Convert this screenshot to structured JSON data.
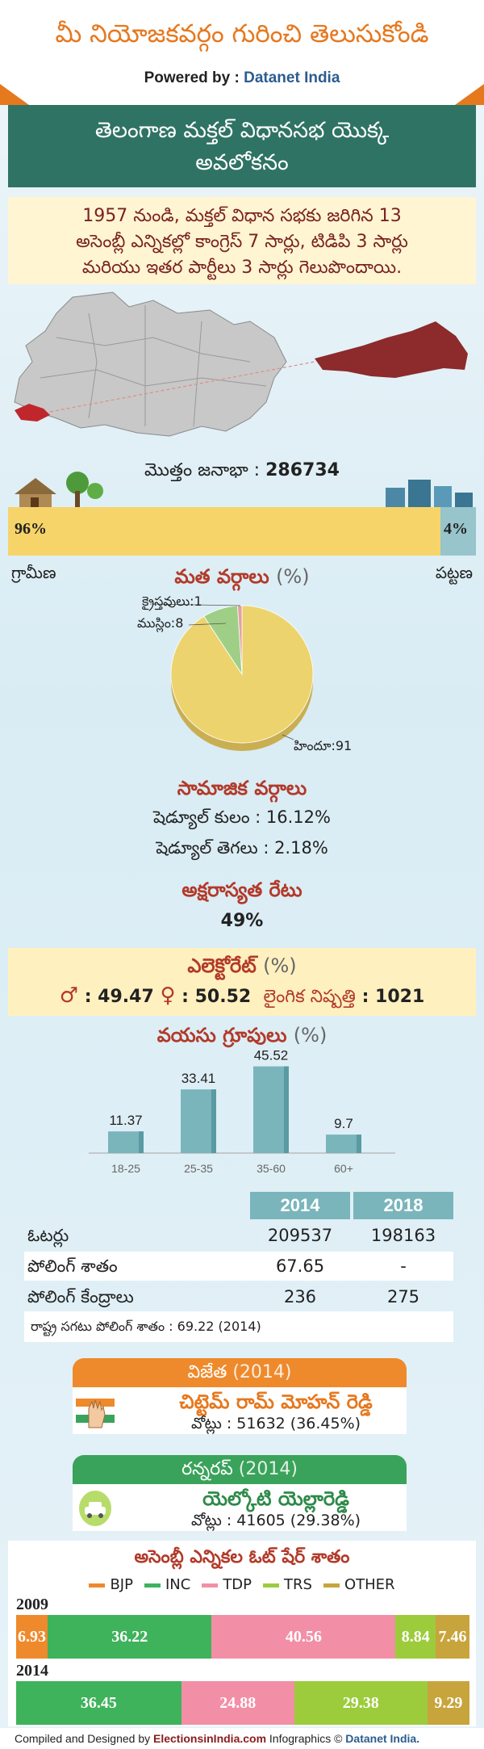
{
  "header": {
    "title": "మీ నియోజకవర్గం గురించి తెలుసుకోండి",
    "powered_by": "Powered by :",
    "brand": "Datanet India"
  },
  "banner": {
    "line1": "తెలంగాణ మక్తల్ విధానసభ యొక్క",
    "line2": "అవలోకనం"
  },
  "summary": {
    "line1": "1957 నుండి, మక్తల్ విధాన సభకు జరిగిన 13",
    "line2": "అసెంబ్లీ ఎన్నికల్లో కాంగ్రెస్ 7 సార్లు, టిడిపి 3 సార్లు",
    "line3": "మరియు ఇతర పార్టీలు 3 సార్లు గెలుపొందాయి."
  },
  "population": {
    "label": "మొత్తం జనాభా :",
    "total": "286734",
    "rural_pct_text": "96%",
    "urban_pct_text": "4%",
    "rural_label": "గ్రామీణ",
    "urban_label": "పట్టణ"
  },
  "religion": {
    "title": "మత వర్గాలు",
    "unit": "(%)",
    "labels": {
      "hindu": "హిందూ:91",
      "muslim": "ముస్లిం:8",
      "christian": "క్రైస్తవులు:1"
    }
  },
  "social": {
    "title": "సామాజిక వర్గాలు",
    "sc": "షెడ్యూల్ కులం :   16.12%",
    "st": "షెడ్యూల్ తెగలు :   2.18%"
  },
  "literacy": {
    "title": "అక్షరాస్యత రేటు",
    "value": "49%"
  },
  "electorate": {
    "title": "ఎలెక్టోరేట్",
    "unit": "(%)",
    "male": ": 49.47",
    "female": ": 50.52",
    "sex_ratio_label": "లైంగిక నిష్పత్తి",
    "sex_ratio": ": 1021"
  },
  "age": {
    "title": "వయసు గ్రూపులు",
    "unit": "(%)"
  },
  "polling_table": {
    "years": [
      "2014",
      "2018"
    ],
    "rows": [
      {
        "label": "ఓటర్లు",
        "v2014": "209537",
        "v2018": "198163"
      },
      {
        "label": "పోలింగ్ శాతం",
        "v2014": "67.65",
        "v2018": "-"
      },
      {
        "label": "పోలింగ్ కేంద్రాలు",
        "v2014": "236",
        "v2018": "275"
      }
    ],
    "note": "రాష్ట్ర సగటు పోలింగ్ శాతం : 69.22 (2014)"
  },
  "winner": {
    "title": "విజేత",
    "year": "(2014)",
    "name": "చిట్టెమ్ రామ్ మోహన్ రెడ్డి",
    "votes": "వోట్లు : 51632 (36.45%)",
    "color": "#ee8a2c"
  },
  "runnerup": {
    "title": "రన్నరప్",
    "year": "(2014)",
    "name": "యెల్కోటి యెల్లారెడ్డి",
    "votes": "వోట్లు : 41605 (29.38%)",
    "color": "#3aa35b"
  },
  "vote_share": {
    "title": "అసెంబ్లీ ఎన్నికల ఓట్ షేర్ శాతం",
    "parties": [
      {
        "name": "BJP",
        "color": "#ee8a2c"
      },
      {
        "name": "INC",
        "color": "#3fb25c"
      },
      {
        "name": "TDP",
        "color": "#f28fa6"
      },
      {
        "name": "TRS",
        "color": "#9ccc3c"
      },
      {
        "name": "OTHER",
        "color": "#c8a43c"
      }
    ]
  },
  "footer": {
    "compiled": "Compiled and Designed by",
    "site": "ElectionsinIndia.com",
    "infographics": "Infographics ©",
    "brand": "Datanet India."
  },
  "chart_data": [
    {
      "type": "bar",
      "title": "మొత్తం జనాభా",
      "categories": [
        "గ్రామీణ",
        "పట్టణ"
      ],
      "values": [
        96,
        4
      ]
    },
    {
      "type": "pie",
      "title": "మత వర్గాలు (%)",
      "categories": [
        "హిందూ",
        "ముస్లిం",
        "క్రైస్తవులు"
      ],
      "values": [
        91,
        8,
        1
      ],
      "colors": [
        "#ecd36e",
        "#9fcf86",
        "#e2a0a0"
      ]
    },
    {
      "type": "bar",
      "title": "వయసు గ్రూపులు (%)",
      "categories": [
        "18-25",
        "25-35",
        "35-60",
        "60+"
      ],
      "values": [
        11.37,
        33.41,
        45.52,
        9.7
      ],
      "ylim": [
        0,
        50
      ]
    },
    {
      "type": "bar",
      "title": "అసెంబ్లీ ఎన్నికల ఓట్ షేర్ శాతం",
      "stacked": true,
      "categories": [
        "2009",
        "2014"
      ],
      "series": [
        {
          "name": "BJP",
          "values": [
            6.93,
            0
          ]
        },
        {
          "name": "INC",
          "values": [
            36.22,
            36.45
          ]
        },
        {
          "name": "TDP",
          "values": [
            40.56,
            24.88
          ]
        },
        {
          "name": "TRS",
          "values": [
            8.84,
            29.38
          ]
        },
        {
          "name": "OTHER",
          "values": [
            7.46,
            9.29
          ]
        }
      ],
      "legend": "top"
    }
  ]
}
